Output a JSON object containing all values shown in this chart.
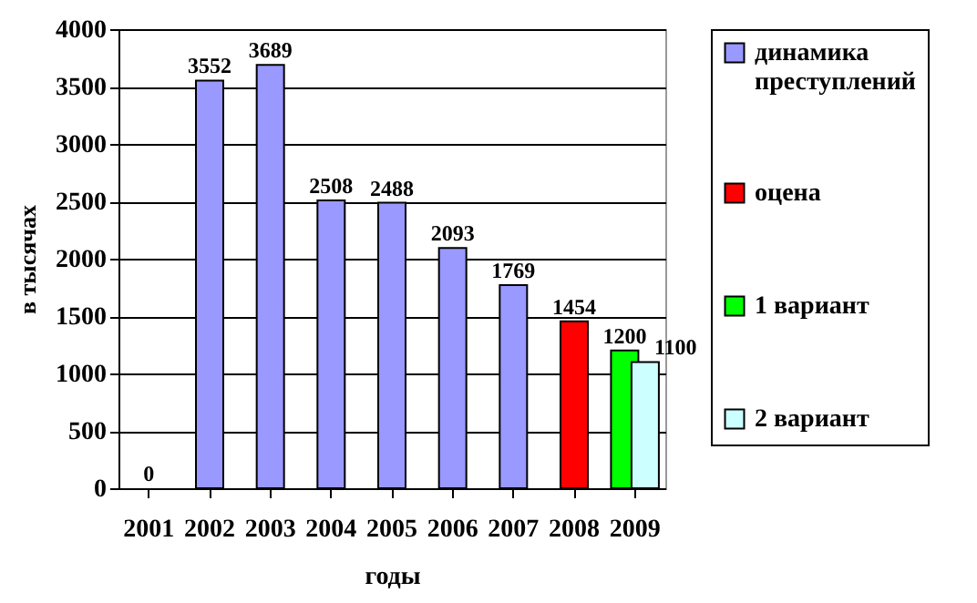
{
  "chart_data": {
    "type": "bar",
    "xlabel": "годы",
    "ylabel": "в тысячах",
    "categories": [
      "2001",
      "2002",
      "2003",
      "2004",
      "2005",
      "2006",
      "2007",
      "2008",
      "2009"
    ],
    "series": [
      {
        "name": "динамика преступлений",
        "color": "#9999ff",
        "values": [
          0,
          3552,
          3689,
          2508,
          2488,
          2093,
          1769,
          null,
          null
        ]
      },
      {
        "name": "оцена",
        "color": "#ff0000",
        "values": [
          null,
          null,
          null,
          null,
          null,
          null,
          null,
          1454,
          null
        ]
      },
      {
        "name": "1 вариант",
        "color": "#00ff00",
        "values": [
          null,
          null,
          null,
          null,
          null,
          null,
          null,
          null,
          1200
        ]
      },
      {
        "name": "2 вариант",
        "color": "#ccffff",
        "values": [
          null,
          null,
          null,
          null,
          null,
          null,
          null,
          null,
          1100
        ]
      }
    ],
    "ylim": [
      0,
      4000
    ],
    "yticks": [
      0,
      500,
      1000,
      1500,
      2000,
      2500,
      3000,
      3500,
      4000
    ],
    "grid": "y",
    "legend": "right",
    "data_labels": true
  }
}
